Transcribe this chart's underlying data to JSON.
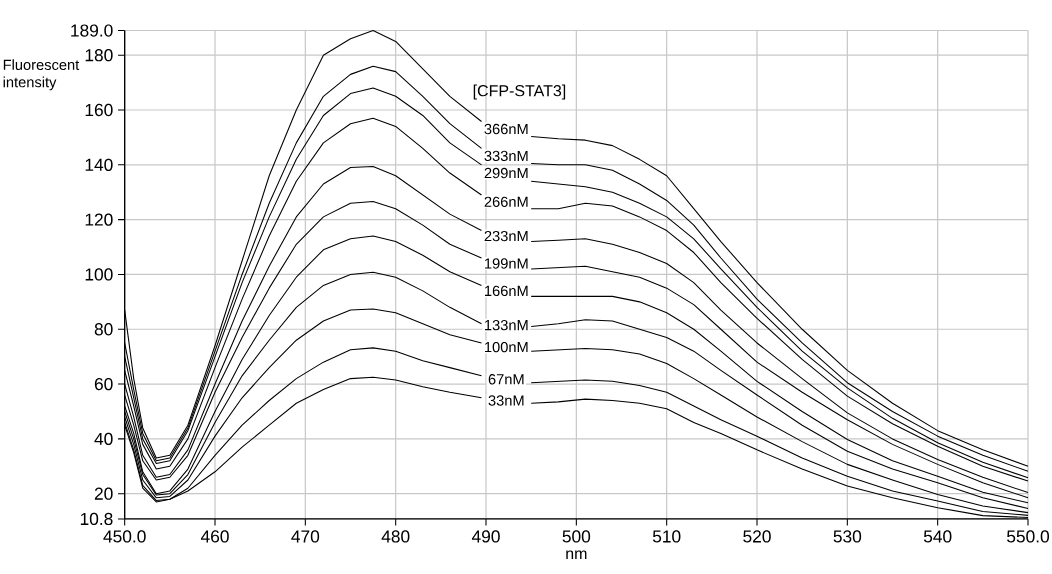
{
  "chart_data": {
    "type": "line",
    "xlabel": "nm",
    "ylabel": "Fluorescent intensity",
    "legend_title": "[CFP-STAT3]",
    "xlim": [
      450,
      550
    ],
    "ylim": [
      10.8,
      189
    ],
    "xticks": [
      {
        "value": 450,
        "label": "450.0"
      },
      460,
      470,
      480,
      490,
      500,
      510,
      520,
      530,
      540,
      {
        "value": 550,
        "label": "550.0"
      }
    ],
    "yticks": [
      10.8,
      20,
      40,
      60,
      80,
      100,
      120,
      140,
      160,
      180,
      {
        "value": 189,
        "label": "189.0"
      }
    ],
    "grid": true,
    "x": [
      450,
      451,
      452,
      453.5,
      455,
      457,
      460,
      463,
      466,
      469,
      472,
      475,
      477.5,
      480,
      483,
      486,
      489.5,
      492,
      495,
      498,
      501,
      504,
      507,
      510,
      513,
      516,
      520,
      525,
      530,
      535,
      540,
      545,
      550
    ],
    "series": [
      {
        "name": "366nM",
        "color": "#000000",
        "values": [
          87,
          62,
          44,
          33,
          34,
          45,
          74,
          105,
          136,
          160,
          180,
          186,
          189,
          185,
          175,
          165,
          155.8,
          null,
          150.3,
          149.5,
          149,
          147,
          142,
          136,
          124,
          112,
          97,
          80,
          65,
          53,
          43,
          36,
          30
        ]
      },
      {
        "name": "333nM",
        "color": "#000000",
        "values": [
          75,
          58,
          42,
          32,
          33,
          44,
          72,
          100,
          126,
          148,
          165,
          173,
          176,
          174,
          165,
          155,
          146,
          null,
          140.5,
          140,
          140,
          138,
          133,
          127,
          118,
          106,
          91,
          75,
          60.5,
          50,
          41,
          34,
          28.2
        ]
      },
      {
        "name": "299nM",
        "color": "#000000",
        "values": [
          70,
          55,
          40,
          31,
          32,
          43,
          70,
          97,
          121,
          142,
          158,
          166,
          168,
          165,
          158,
          148,
          140,
          null,
          134,
          133,
          132,
          130,
          126,
          121,
          113,
          102,
          88,
          72,
          58.6,
          47.5,
          38.6,
          31.5,
          25.8
        ]
      },
      {
        "name": "266nM",
        "color": "#000000",
        "values": [
          65,
          52,
          38,
          29,
          30,
          40,
          66,
          91,
          114,
          134,
          148,
          155,
          157,
          154,
          146,
          137,
          129,
          null,
          124,
          124,
          126,
          125,
          121,
          116,
          108,
          97,
          84,
          69,
          55.6,
          45.5,
          37.3,
          30,
          24.6
        ]
      },
      {
        "name": "233nM",
        "color": "#000000",
        "values": [
          60,
          48,
          34,
          26,
          27,
          36,
          60,
          83,
          103,
          121,
          133,
          139,
          139.4,
          136,
          129,
          122,
          116,
          null,
          112,
          112.5,
          113,
          111,
          108,
          104,
          97,
          87,
          75,
          62,
          49.5,
          40,
          32.5,
          26,
          20.4
        ]
      },
      {
        "name": "199nM",
        "color": "#000000",
        "values": [
          56,
          45,
          32,
          25,
          26,
          34,
          57,
          77,
          95,
          111,
          121,
          126,
          126.6,
          124,
          118,
          111,
          106,
          null,
          102,
          102.5,
          103,
          101,
          99,
          95,
          89,
          80,
          68,
          57,
          47,
          38,
          30.7,
          24,
          18.5
        ]
      },
      {
        "name": "166nM",
        "color": "#000000",
        "values": [
          52,
          42,
          28,
          20,
          21,
          29,
          50,
          69,
          85,
          99,
          109,
          113,
          114,
          112,
          107,
          101,
          96,
          null,
          92,
          92,
          92,
          92,
          90,
          86,
          80,
          72,
          61,
          50,
          39.8,
          32,
          26.4,
          20.5,
          16.7
        ]
      },
      {
        "name": "133nM",
        "color": "#000000",
        "values": [
          50,
          40,
          27,
          19.5,
          20,
          27,
          46,
          63,
          76,
          88,
          96,
          100,
          100.8,
          99,
          94,
          88,
          82,
          null,
          81,
          82,
          83.5,
          83,
          80,
          77,
          72,
          65,
          56,
          45,
          35.5,
          29,
          24,
          18.5,
          14.6
        ]
      },
      {
        "name": "100nM",
        "color": "#000000",
        "values": [
          48,
          38,
          25,
          18.5,
          19,
          25,
          41,
          55,
          66,
          76,
          83,
          87,
          87.4,
          86,
          82,
          78,
          75,
          null,
          72,
          72.5,
          73,
          72.5,
          71,
          67.5,
          62,
          56,
          48,
          39,
          30.7,
          25,
          19.7,
          15.5,
          13.1
        ]
      },
      {
        "name": "67nM",
        "color": "#000000",
        "values": [
          46,
          36,
          23,
          17.5,
          18,
          22,
          34,
          45,
          54,
          62,
          68,
          72.5,
          73.2,
          72,
          68.5,
          66,
          63,
          null,
          60.5,
          61,
          61.5,
          61,
          59.5,
          57,
          52,
          47,
          41,
          33,
          26.4,
          21,
          17.3,
          13.5,
          12.1
        ]
      },
      {
        "name": "33nM",
        "color": "#000000",
        "values": [
          45,
          35,
          22,
          17,
          18,
          21,
          28,
          37,
          45,
          53,
          58,
          62,
          62.5,
          61.5,
          59,
          57,
          55,
          null,
          53,
          53.5,
          54.5,
          54,
          53,
          51,
          46,
          42,
          36,
          29,
          22.8,
          18.5,
          14.9,
          12,
          11.3
        ]
      }
    ]
  }
}
